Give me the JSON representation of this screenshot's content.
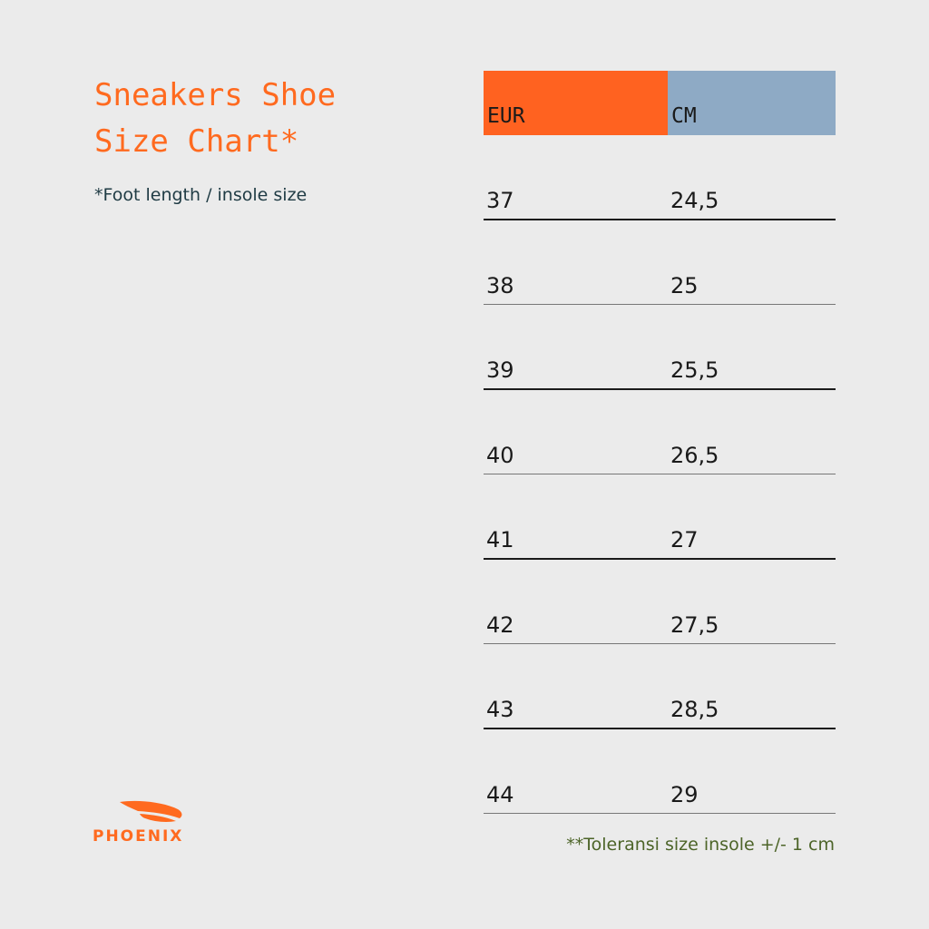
{
  "title": "Sneakers Shoe Size Chart*",
  "subtitle": "*Foot length / insole size",
  "table": {
    "headers": {
      "eur": "EUR",
      "cm": "CM"
    },
    "rows": [
      {
        "eur": "37",
        "cm": "24,5"
      },
      {
        "eur": "38",
        "cm": "25"
      },
      {
        "eur": "39",
        "cm": "25,5"
      },
      {
        "eur": "40",
        "cm": "26,5"
      },
      {
        "eur": "41",
        "cm": "27"
      },
      {
        "eur": "42",
        "cm": "27,5"
      },
      {
        "eur": "43",
        "cm": "28,5"
      },
      {
        "eur": "44",
        "cm": "29"
      }
    ]
  },
  "note": "**Toleransi size insole +/- 1 cm",
  "logo": {
    "text": "PHOENIX",
    "icon": "phoenix-wing-icon"
  },
  "colors": {
    "accent_orange": "#ff6220",
    "header_blue": "#8eaac5",
    "background": "#ebebeb",
    "note_green": "#4c6428"
  }
}
